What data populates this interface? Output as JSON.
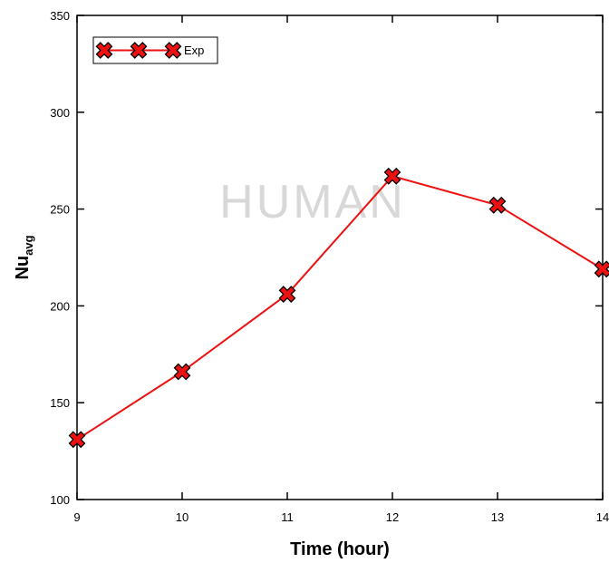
{
  "chart_data": {
    "type": "line",
    "xlabel": "Time (hour)",
    "ylabel": "Nu",
    "ylabel_sub": "avg",
    "watermark": "HUMAN",
    "x": [
      9,
      10,
      11,
      12,
      13,
      14
    ],
    "series": [
      {
        "name": "Exp",
        "color": "#ee1111",
        "values": [
          131,
          166,
          206,
          267,
          252,
          219
        ]
      }
    ],
    "xlim": [
      9,
      14
    ],
    "xticks": [
      9,
      10,
      11,
      12,
      13,
      14
    ],
    "ylim": [
      100,
      350
    ],
    "yticks": [
      100,
      150,
      200,
      250,
      300,
      350
    ],
    "legend": "top-left"
  }
}
